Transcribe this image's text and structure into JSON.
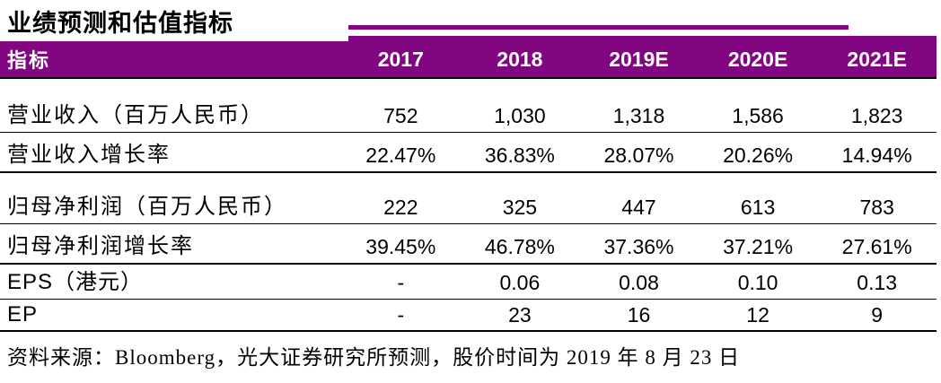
{
  "title": "业绩预测和估值指标",
  "colors": {
    "header_bg": "#820682",
    "header_text": "#ffffff",
    "rule_line": "#000000"
  },
  "table": {
    "header": {
      "label": "指标",
      "years": [
        "2017",
        "2018",
        "2019E",
        "2020E",
        "2021E"
      ]
    },
    "rows": [
      {
        "label": "营业收入（百万人民币）",
        "values": [
          "752",
          "1,030",
          "1,318",
          "1,586",
          "1,823"
        ]
      },
      {
        "label": "营业收入增长率",
        "values": [
          "22.47%",
          "36.83%",
          "28.07%",
          "20.26%",
          "14.94%"
        ]
      },
      {
        "label": "归母净利润（百万人民币）",
        "values": [
          "222",
          "325",
          "447",
          "613",
          "783"
        ]
      },
      {
        "label": "归母净利润增长率",
        "values": [
          "39.45%",
          "46.78%",
          "37.36%",
          "37.21%",
          "27.61%"
        ]
      },
      {
        "label": "EPS（港元）",
        "values": [
          "-",
          "0.06",
          "0.08",
          "0.10",
          "0.13"
        ]
      },
      {
        "label": "EP",
        "values": [
          "-",
          "23",
          "16",
          "12",
          "9"
        ]
      }
    ]
  },
  "footer": "资料来源：Bloomberg，光大证券研究所预测，股价时间为 2019 年 8 月 23 日"
}
